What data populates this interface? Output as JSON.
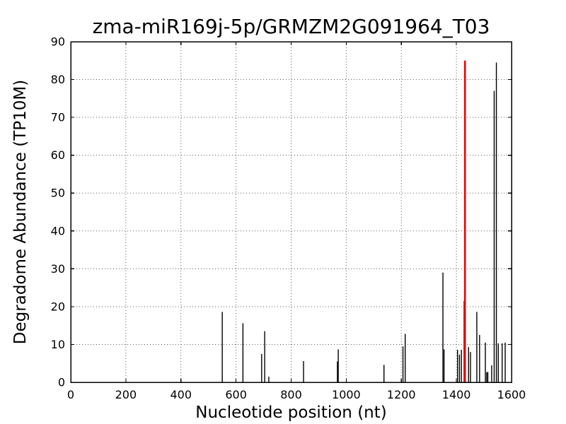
{
  "chart_data": {
    "type": "bar",
    "title": "zma-miR169j-5p/GRMZM2G091964_T03",
    "xlabel": "Nucleotide position (nt)",
    "ylabel": "Degradome Abundance (TP10M)",
    "xlim": [
      0,
      1600
    ],
    "ylim": [
      0,
      90
    ],
    "xticks": [
      0,
      200,
      400,
      600,
      800,
      1000,
      1200,
      1400,
      1600
    ],
    "yticks": [
      0,
      10,
      20,
      30,
      40,
      50,
      60,
      70,
      80,
      90
    ],
    "grid": true,
    "grid_style": "dotted",
    "legend": "none",
    "bar_color": "#000000",
    "highlight_color": "#ee0000",
    "points": [
      {
        "x": 550,
        "y": 18.6
      },
      {
        "x": 625,
        "y": 15.6
      },
      {
        "x": 693,
        "y": 7.5
      },
      {
        "x": 704,
        "y": 13.5
      },
      {
        "x": 719,
        "y": 1.5
      },
      {
        "x": 845,
        "y": 5.6
      },
      {
        "x": 968,
        "y": 5.5
      },
      {
        "x": 971,
        "y": 8.7
      },
      {
        "x": 1137,
        "y": 4.6
      },
      {
        "x": 1206,
        "y": 9.5
      },
      {
        "x": 1214,
        "y": 12.8
      },
      {
        "x": 1351,
        "y": 29.0
      },
      {
        "x": 1355,
        "y": 8.7
      },
      {
        "x": 1404,
        "y": 8.6
      },
      {
        "x": 1411,
        "y": 7.3
      },
      {
        "x": 1418,
        "y": 8.6
      },
      {
        "x": 1428,
        "y": 21.5
      },
      {
        "x": 1431,
        "y": 85.0,
        "color": "#ee0000"
      },
      {
        "x": 1444,
        "y": 9.3
      },
      {
        "x": 1451,
        "y": 8.0
      },
      {
        "x": 1474,
        "y": 18.6
      },
      {
        "x": 1484,
        "y": 12.5
      },
      {
        "x": 1505,
        "y": 10.5
      },
      {
        "x": 1510,
        "y": 2.7
      },
      {
        "x": 1514,
        "y": 2.7
      },
      {
        "x": 1528,
        "y": 4.5
      },
      {
        "x": 1537,
        "y": 77.0
      },
      {
        "x": 1545,
        "y": 84.5
      },
      {
        "x": 1552,
        "y": 10.3
      },
      {
        "x": 1566,
        "y": 10.3
      },
      {
        "x": 1577,
        "y": 10.5
      }
    ]
  }
}
